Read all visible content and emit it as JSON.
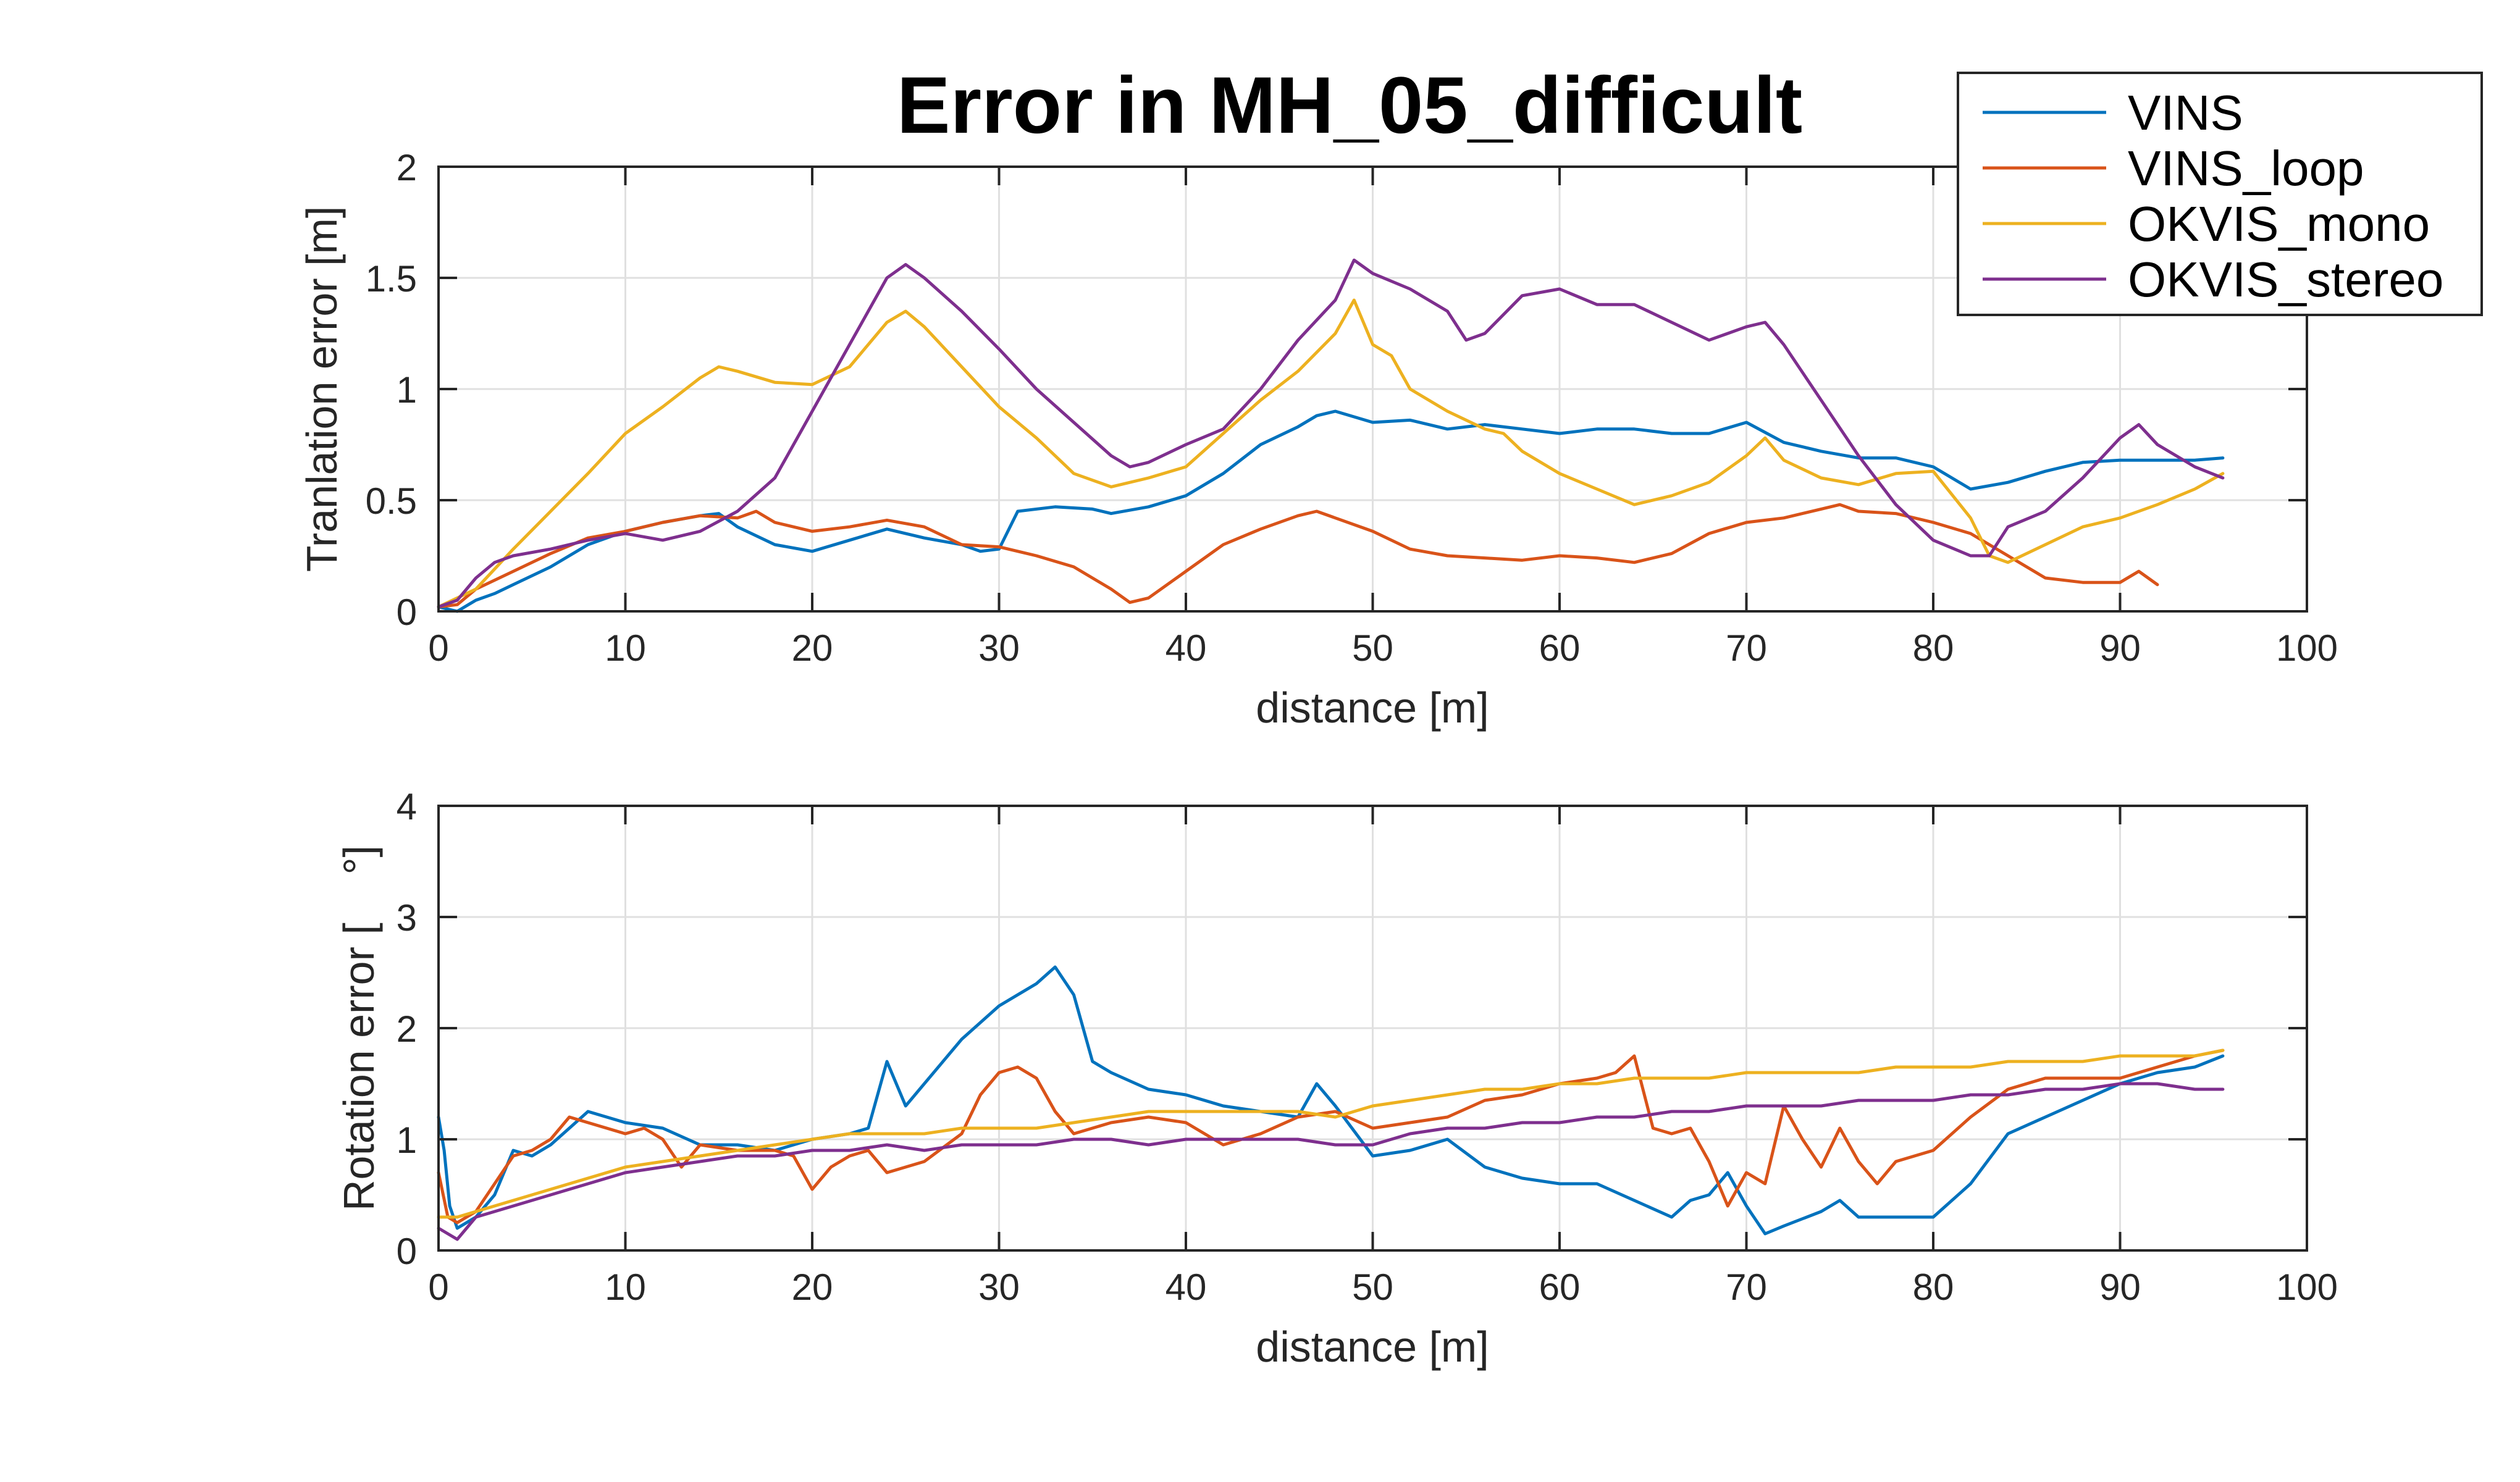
{
  "figure": {
    "title": "Error in MH_05_difficult",
    "background": "#ffffff"
  },
  "legend": {
    "placement": "top-right",
    "entries": [
      {
        "name": "VINS",
        "color": "#0072BD"
      },
      {
        "name": "VINS_loop",
        "color": "#D95319"
      },
      {
        "name": "OKVIS_mono",
        "color": "#EDB120"
      },
      {
        "name": "OKVIS_stereo",
        "color": "#7E2F8E"
      }
    ]
  },
  "chart_data": [
    {
      "type": "line",
      "title": "Error in MH_05_difficult",
      "xlabel": "distance [m]",
      "ylabel": "Tranlation error [m]",
      "xlim": [
        0,
        100
      ],
      "ylim": [
        0,
        2
      ],
      "xticks": [
        0,
        10,
        20,
        30,
        40,
        50,
        60,
        70,
        80,
        90,
        100
      ],
      "yticks": [
        0,
        0.5,
        1,
        1.5,
        2
      ],
      "ytick_labels": [
        "0",
        "0.5",
        "1",
        "1.5",
        "2"
      ],
      "grid": true,
      "legend": "top-right",
      "series": [
        {
          "name": "VINS",
          "color": "#0072BD",
          "x": [
            0,
            1,
            2,
            3,
            4,
            6,
            8,
            10,
            12,
            14,
            15,
            16,
            18,
            20,
            22,
            24,
            26,
            28,
            29,
            30,
            31,
            33,
            35,
            36,
            38,
            40,
            42,
            44,
            46,
            47,
            48,
            50,
            52,
            54,
            56,
            58,
            60,
            62,
            64,
            66,
            68,
            70,
            72,
            74,
            76,
            78,
            80,
            82,
            84,
            86,
            88,
            90,
            92,
            94,
            95.5
          ],
          "y": [
            0.02,
            0.0,
            0.05,
            0.08,
            0.12,
            0.2,
            0.3,
            0.36,
            0.4,
            0.43,
            0.44,
            0.38,
            0.3,
            0.27,
            0.32,
            0.37,
            0.33,
            0.3,
            0.27,
            0.28,
            0.45,
            0.47,
            0.46,
            0.44,
            0.47,
            0.52,
            0.62,
            0.75,
            0.83,
            0.88,
            0.9,
            0.85,
            0.86,
            0.82,
            0.84,
            0.82,
            0.8,
            0.82,
            0.82,
            0.8,
            0.8,
            0.85,
            0.76,
            0.72,
            0.69,
            0.69,
            0.65,
            0.55,
            0.58,
            0.63,
            0.67,
            0.68,
            0.68,
            0.68,
            0.69
          ]
        },
        {
          "name": "VINS_loop",
          "color": "#D95319",
          "x": [
            0,
            1,
            2,
            4,
            6,
            8,
            10,
            12,
            14,
            16,
            17,
            18,
            20,
            22,
            24,
            26,
            28,
            30,
            32,
            34,
            36,
            37,
            38,
            40,
            42,
            44,
            46,
            47,
            48,
            50,
            52,
            54,
            56,
            58,
            60,
            62,
            64,
            66,
            68,
            70,
            72,
            74,
            75,
            76,
            78,
            80,
            82,
            84,
            86,
            88,
            90,
            91,
            92
          ],
          "y": [
            0.02,
            0.03,
            0.1,
            0.18,
            0.26,
            0.33,
            0.36,
            0.4,
            0.43,
            0.42,
            0.45,
            0.4,
            0.36,
            0.38,
            0.41,
            0.38,
            0.3,
            0.29,
            0.25,
            0.2,
            0.1,
            0.04,
            0.06,
            0.18,
            0.3,
            0.37,
            0.43,
            0.45,
            0.42,
            0.36,
            0.28,
            0.25,
            0.24,
            0.23,
            0.25,
            0.24,
            0.22,
            0.26,
            0.35,
            0.4,
            0.42,
            0.46,
            0.48,
            0.45,
            0.44,
            0.4,
            0.35,
            0.25,
            0.15,
            0.13,
            0.13,
            0.18,
            0.12
          ]
        },
        {
          "name": "OKVIS_mono",
          "color": "#EDB120",
          "x": [
            0,
            2,
            4,
            6,
            8,
            10,
            12,
            14,
            15,
            16,
            18,
            20,
            22,
            24,
            25,
            26,
            28,
            30,
            32,
            34,
            36,
            38,
            40,
            42,
            44,
            46,
            48,
            49,
            50,
            51,
            52,
            54,
            56,
            57,
            58,
            60,
            62,
            64,
            66,
            68,
            70,
            71,
            72,
            74,
            76,
            78,
            80,
            82,
            83,
            84,
            86,
            88,
            90,
            92,
            94,
            95.5
          ],
          "y": [
            0.02,
            0.1,
            0.28,
            0.45,
            0.62,
            0.8,
            0.92,
            1.05,
            1.1,
            1.08,
            1.03,
            1.02,
            1.1,
            1.3,
            1.35,
            1.28,
            1.1,
            0.92,
            0.78,
            0.62,
            0.56,
            0.6,
            0.65,
            0.8,
            0.95,
            1.08,
            1.25,
            1.4,
            1.2,
            1.15,
            1.0,
            0.9,
            0.82,
            0.8,
            0.72,
            0.62,
            0.55,
            0.48,
            0.52,
            0.58,
            0.7,
            0.78,
            0.68,
            0.6,
            0.57,
            0.62,
            0.63,
            0.42,
            0.25,
            0.22,
            0.3,
            0.38,
            0.42,
            0.48,
            0.55,
            0.62
          ]
        },
        {
          "name": "OKVIS_stereo",
          "color": "#7E2F8E",
          "x": [
            0,
            1,
            2,
            3,
            4,
            6,
            8,
            10,
            12,
            14,
            16,
            18,
            20,
            22,
            24,
            25,
            26,
            28,
            30,
            32,
            34,
            36,
            37,
            38,
            40,
            42,
            44,
            46,
            48,
            49,
            50,
            52,
            54,
            55,
            56,
            58,
            60,
            62,
            64,
            66,
            68,
            70,
            71,
            72,
            74,
            76,
            78,
            80,
            82,
            83,
            84,
            86,
            88,
            90,
            91,
            92,
            94,
            95.5
          ],
          "y": [
            0.02,
            0.05,
            0.15,
            0.22,
            0.25,
            0.28,
            0.32,
            0.35,
            0.32,
            0.36,
            0.45,
            0.6,
            0.9,
            1.2,
            1.5,
            1.56,
            1.5,
            1.35,
            1.18,
            1.0,
            0.85,
            0.7,
            0.65,
            0.67,
            0.75,
            0.82,
            1.0,
            1.22,
            1.4,
            1.58,
            1.52,
            1.45,
            1.35,
            1.22,
            1.25,
            1.42,
            1.45,
            1.38,
            1.38,
            1.3,
            1.22,
            1.28,
            1.3,
            1.2,
            0.95,
            0.7,
            0.48,
            0.32,
            0.25,
            0.25,
            0.38,
            0.45,
            0.6,
            0.78,
            0.84,
            0.75,
            0.65,
            0.6
          ]
        }
      ]
    },
    {
      "type": "line",
      "title": "",
      "xlabel": "distance [m]",
      "ylabel": "Rotation error [    °]",
      "xlim": [
        0,
        100
      ],
      "ylim": [
        0,
        4
      ],
      "xticks": [
        0,
        10,
        20,
        30,
        40,
        50,
        60,
        70,
        80,
        90,
        100
      ],
      "yticks": [
        0,
        1,
        2,
        3,
        4
      ],
      "ytick_labels": [
        "0",
        "1",
        "2",
        "3",
        "4"
      ],
      "grid": true,
      "series": [
        {
          "name": "VINS",
          "color": "#0072BD",
          "x": [
            0,
            0.3,
            0.6,
            1,
            2,
            3,
            4,
            5,
            6,
            7,
            8,
            9,
            10,
            12,
            14,
            16,
            18,
            20,
            22,
            23,
            24,
            25,
            26,
            28,
            30,
            32,
            33,
            34,
            35,
            36,
            38,
            40,
            42,
            44,
            46,
            47,
            48,
            50,
            52,
            54,
            56,
            58,
            60,
            62,
            64,
            66,
            67,
            68,
            69,
            70,
            71,
            72,
            74,
            75,
            76,
            78,
            80,
            82,
            84,
            86,
            88,
            90,
            92,
            94,
            95.5
          ],
          "y": [
            1.2,
            0.9,
            0.4,
            0.2,
            0.3,
            0.5,
            0.9,
            0.85,
            0.95,
            1.1,
            1.25,
            1.2,
            1.15,
            1.1,
            0.95,
            0.95,
            0.9,
            1.0,
            1.05,
            1.1,
            1.7,
            1.3,
            1.5,
            1.9,
            2.2,
            2.4,
            2.55,
            2.3,
            1.7,
            1.6,
            1.45,
            1.4,
            1.3,
            1.25,
            1.2,
            1.5,
            1.3,
            0.85,
            0.9,
            1.0,
            0.75,
            0.65,
            0.6,
            0.6,
            0.45,
            0.3,
            0.45,
            0.5,
            0.7,
            0.4,
            0.15,
            0.22,
            0.35,
            0.45,
            0.3,
            0.3,
            0.3,
            0.6,
            1.05,
            1.2,
            1.35,
            1.5,
            1.6,
            1.65,
            1.75
          ]
        },
        {
          "name": "VINS_loop",
          "color": "#D95319",
          "x": [
            0,
            0.5,
            1,
            2,
            3,
            4,
            5,
            6,
            7,
            8,
            9,
            10,
            11,
            12,
            13,
            14,
            16,
            18,
            19,
            20,
            21,
            22,
            23,
            24,
            26,
            28,
            29,
            30,
            31,
            32,
            33,
            34,
            36,
            38,
            40,
            42,
            44,
            46,
            48,
            50,
            52,
            54,
            56,
            58,
            60,
            62,
            63,
            64,
            65,
            66,
            67,
            68,
            69,
            70,
            71,
            72,
            73,
            74,
            75,
            76,
            77,
            78,
            80,
            82,
            84,
            86,
            88,
            90,
            92,
            94,
            95.5
          ],
          "y": [
            0.7,
            0.3,
            0.25,
            0.35,
            0.6,
            0.85,
            0.9,
            1.0,
            1.2,
            1.15,
            1.1,
            1.05,
            1.1,
            1.0,
            0.75,
            0.95,
            0.9,
            0.9,
            0.85,
            0.55,
            0.75,
            0.85,
            0.9,
            0.7,
            0.8,
            1.05,
            1.4,
            1.6,
            1.65,
            1.55,
            1.25,
            1.05,
            1.15,
            1.2,
            1.15,
            0.95,
            1.05,
            1.2,
            1.25,
            1.1,
            1.15,
            1.2,
            1.35,
            1.4,
            1.5,
            1.55,
            1.6,
            1.75,
            1.1,
            1.05,
            1.1,
            0.8,
            0.4,
            0.7,
            0.6,
            1.3,
            1.0,
            0.75,
            1.1,
            0.8,
            0.6,
            0.8,
            0.9,
            1.2,
            1.45,
            1.55,
            1.55,
            1.55,
            1.65,
            1.75,
            1.8
          ]
        },
        {
          "name": "OKVIS_mono",
          "color": "#EDB120",
          "x": [
            0,
            1,
            2,
            4,
            6,
            8,
            10,
            12,
            14,
            16,
            18,
            20,
            22,
            24,
            26,
            28,
            30,
            32,
            34,
            36,
            38,
            40,
            42,
            44,
            46,
            48,
            50,
            52,
            54,
            56,
            58,
            60,
            62,
            64,
            66,
            68,
            70,
            72,
            74,
            76,
            78,
            80,
            82,
            84,
            86,
            88,
            90,
            92,
            94,
            95.5
          ],
          "y": [
            0.3,
            0.3,
            0.35,
            0.45,
            0.55,
            0.65,
            0.75,
            0.8,
            0.85,
            0.9,
            0.95,
            1.0,
            1.05,
            1.05,
            1.05,
            1.1,
            1.1,
            1.1,
            1.15,
            1.2,
            1.25,
            1.25,
            1.25,
            1.25,
            1.25,
            1.2,
            1.3,
            1.35,
            1.4,
            1.45,
            1.45,
            1.5,
            1.5,
            1.55,
            1.55,
            1.55,
            1.6,
            1.6,
            1.6,
            1.6,
            1.65,
            1.65,
            1.65,
            1.7,
            1.7,
            1.7,
            1.75,
            1.75,
            1.75,
            1.8
          ]
        },
        {
          "name": "OKVIS_stereo",
          "color": "#7E2F8E",
          "x": [
            0,
            1,
            2,
            4,
            6,
            8,
            10,
            12,
            14,
            16,
            18,
            20,
            22,
            24,
            26,
            28,
            30,
            32,
            34,
            36,
            38,
            40,
            42,
            44,
            46,
            48,
            50,
            52,
            54,
            56,
            58,
            60,
            62,
            64,
            66,
            68,
            70,
            72,
            74,
            76,
            78,
            80,
            82,
            84,
            86,
            88,
            90,
            92,
            94,
            95.5
          ],
          "y": [
            0.2,
            0.1,
            0.3,
            0.4,
            0.5,
            0.6,
            0.7,
            0.75,
            0.8,
            0.85,
            0.85,
            0.9,
            0.9,
            0.95,
            0.9,
            0.95,
            0.95,
            0.95,
            1.0,
            1.0,
            0.95,
            1.0,
            1.0,
            1.0,
            1.0,
            0.95,
            0.95,
            1.05,
            1.1,
            1.1,
            1.15,
            1.15,
            1.2,
            1.2,
            1.25,
            1.25,
            1.3,
            1.3,
            1.3,
            1.35,
            1.35,
            1.35,
            1.4,
            1.4,
            1.45,
            1.45,
            1.5,
            1.5,
            1.45,
            1.45
          ]
        }
      ]
    }
  ]
}
